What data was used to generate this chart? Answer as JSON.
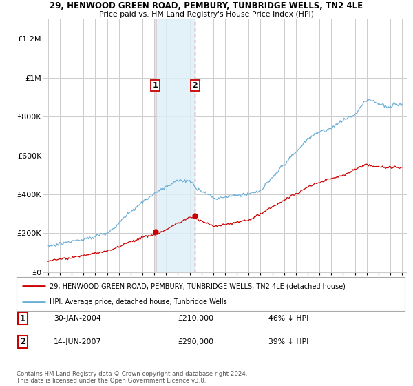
{
  "title1": "29, HENWOOD GREEN ROAD, PEMBURY, TUNBRIDGE WELLS, TN2 4LE",
  "title2": "Price paid vs. HM Land Registry's House Price Index (HPI)",
  "ylim": [
    0,
    1300000
  ],
  "yticks": [
    0,
    200000,
    400000,
    600000,
    800000,
    1000000,
    1200000
  ],
  "ytick_labels": [
    "£0",
    "£200K",
    "£400K",
    "£600K",
    "£800K",
    "£1M",
    "£1.2M"
  ],
  "hpi_color": "#6baed6",
  "sale_color": "#cc0000",
  "bg_color": "#ffffff",
  "grid_color": "#cccccc",
  "sale1_year": 2004.08,
  "sale1_price": 210000,
  "sale2_year": 2007.46,
  "sale2_price": 290000,
  "legend_sale_label": "29, HENWOOD GREEN ROAD, PEMBURY, TUNBRIDGE WELLS, TN2 4LE (detached house)",
  "legend_hpi_label": "HPI: Average price, detached house, Tunbridge Wells",
  "footnote": "Contains HM Land Registry data © Crown copyright and database right 2024.\nThis data is licensed under the Open Government Licence v3.0.",
  "table_rows": [
    {
      "num": "1",
      "date": "30-JAN-2004",
      "price": "£210,000",
      "pct": "46% ↓ HPI"
    },
    {
      "num": "2",
      "date": "14-JUN-2007",
      "price": "£290,000",
      "pct": "39% ↓ HPI"
    }
  ]
}
